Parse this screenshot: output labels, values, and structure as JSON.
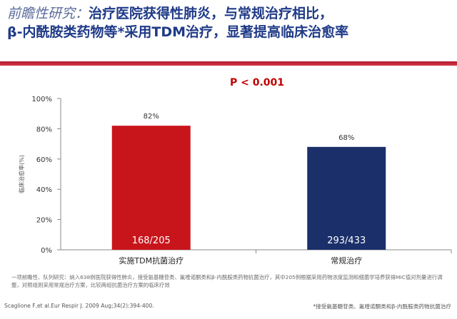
{
  "title": {
    "lead": "前瞻性研究：",
    "line1_rest": "治疗医院获得性肺炎，与常规治疗相比，",
    "line2": "β-内酰胺类药物等*采用TDM治疗，显著提高临床治愈率"
  },
  "p_value": "P < 0.001",
  "chart_data": {
    "type": "bar",
    "title": "",
    "xlabel": "",
    "ylabel": "临床治愈率(%)",
    "ylim": [
      0,
      100
    ],
    "yticks": [
      "0%",
      "20%",
      "40%",
      "60%",
      "80%",
      "100%"
    ],
    "ytick_values": [
      0,
      20,
      40,
      60,
      80,
      100
    ],
    "grid": false,
    "legend": "none",
    "categories": [
      "实施TDM抗菌治疗",
      "常规治疗"
    ],
    "values": [
      82,
      68
    ],
    "value_labels": [
      "82%",
      "68%"
    ],
    "inner_labels": [
      "168/205",
      "293/433"
    ],
    "colors": [
      "#c8151b",
      "#1b2f6b"
    ]
  },
  "footnote": "一项前瞻性、队列研究：纳入638例医院获得性肺炎，接受氨基糖苷类、氟喹诺酮类和β-内酰胺类药物抗菌治疗，其中205例根据采用药物浓度监测和细菌学培养获得MIC值对剂量进行调整，对照组则采用常规治疗方案，比较两组抗菌治疗方案的临床疗效",
  "citation": "Scaglione F,et al.Eur Respir J. 2009 Aug;34(2):394-400.",
  "note": "*接受氨基糖苷类、氟喹诺酮类和β-内酰胺类药物抗菌治疗"
}
